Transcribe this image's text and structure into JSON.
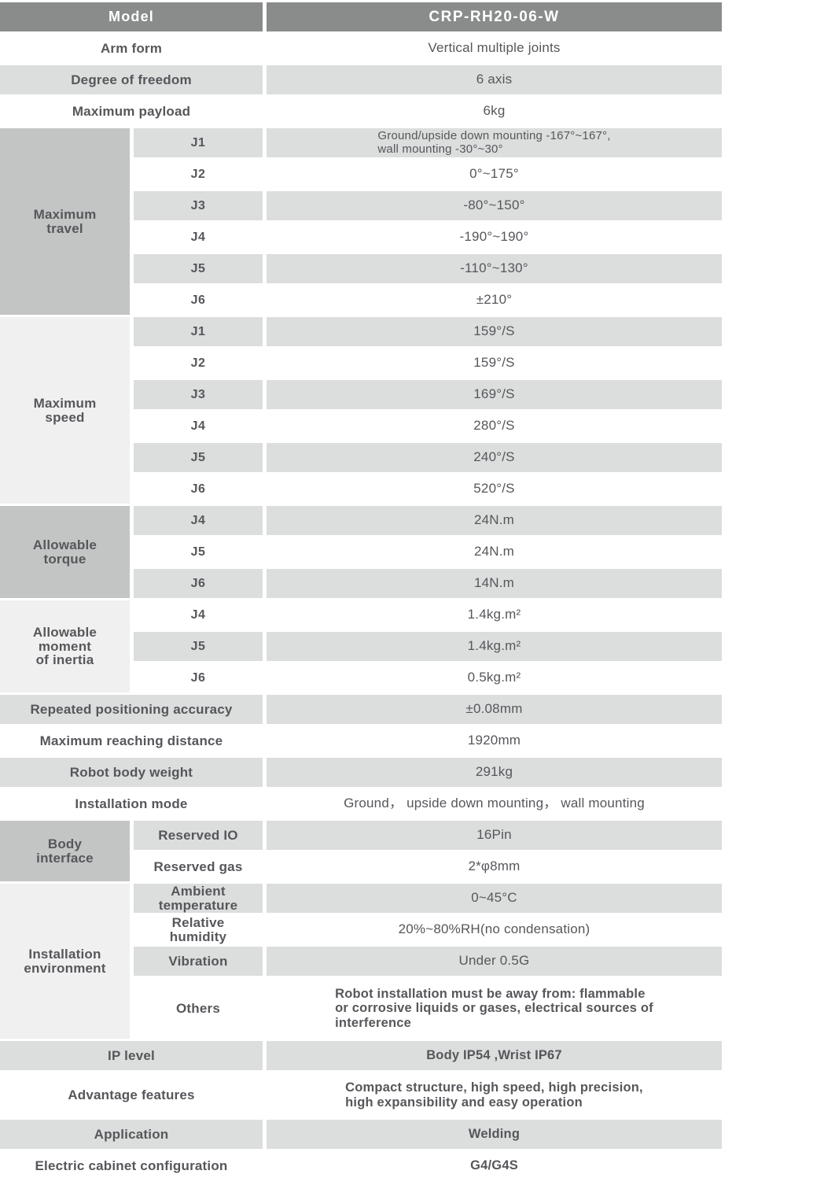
{
  "colors": {
    "header_bg": "#8a8b8b",
    "header_text": "#ffffff",
    "stripe_bg": "#dcdddd",
    "group_dark_bg": "#c3c4c4",
    "group_light_bg": "#f0f0f0",
    "text": "#56575b"
  },
  "header": {
    "label": "Model",
    "value": "CRP-RH20-06-W"
  },
  "rows": {
    "arm_form": {
      "label": "Arm form",
      "value": "Vertical multiple joints"
    },
    "degree_of_freedom": {
      "label": "Degree of freedom",
      "value": "6 axis"
    },
    "maximum_payload": {
      "label": "Maximum payload",
      "value": "6kg"
    },
    "repeated_positioning_accuracy": {
      "label": "Repeated positioning accuracy",
      "value": "±0.08mm"
    },
    "maximum_reaching_distance": {
      "label": "Maximum reaching distance",
      "value": "1920mm"
    },
    "robot_body_weight": {
      "label": "Robot body weight",
      "value": "291kg"
    },
    "installation_mode": {
      "label": "Installation mode",
      "value": "Ground， upside down mounting， wall mounting"
    },
    "ip_level": {
      "label": "IP level",
      "value": "Body IP54 ,Wrist IP67"
    },
    "advantage_features": {
      "label": "Advantage features",
      "value": "Compact structure, high speed, high precision,\nhigh expansibility and easy operation"
    },
    "application": {
      "label": "Application",
      "value": "Welding"
    },
    "electric_cabinet_configuration": {
      "label": "Electric cabinet configuration",
      "value": "G4/G4S"
    }
  },
  "groups": {
    "maximum_travel": {
      "label": "Maximum\ntravel",
      "rows": [
        {
          "joint": "J1",
          "value": "Ground/upside down mounting -167°~167°,\nwall mounting -30°~30°"
        },
        {
          "joint": "J2",
          "value": "0°~175°"
        },
        {
          "joint": "J3",
          "value": "-80°~150°"
        },
        {
          "joint": "J4",
          "value": "-190°~190°"
        },
        {
          "joint": "J5",
          "value": "-110°~130°"
        },
        {
          "joint": "J6",
          "value": "±210°"
        }
      ]
    },
    "maximum_speed": {
      "label": "Maximum\nspeed",
      "rows": [
        {
          "joint": "J1",
          "value": "159°/S"
        },
        {
          "joint": "J2",
          "value": "159°/S"
        },
        {
          "joint": "J3",
          "value": "169°/S"
        },
        {
          "joint": "J4",
          "value": "280°/S"
        },
        {
          "joint": "J5",
          "value": "240°/S"
        },
        {
          "joint": "J6",
          "value": "520°/S"
        }
      ]
    },
    "allowable_torque": {
      "label": "Allowable\ntorque",
      "rows": [
        {
          "joint": "J4",
          "value": "24N.m"
        },
        {
          "joint": "J5",
          "value": "24N.m"
        },
        {
          "joint": "J6",
          "value": "14N.m"
        }
      ]
    },
    "allowable_moment_of_inertia": {
      "label": "Allowable\nmoment\nof inertia",
      "rows": [
        {
          "joint": "J4",
          "value": "1.4kg.m²"
        },
        {
          "joint": "J5",
          "value": "1.4kg.m²"
        },
        {
          "joint": "J6",
          "value": "0.5kg.m²"
        }
      ]
    }
  },
  "body_interface": {
    "label": "Body\ninterface",
    "rows": [
      {
        "label": "Reserved IO",
        "value": "16Pin"
      },
      {
        "label": "Reserved gas",
        "value": "2*φ8mm"
      }
    ]
  },
  "installation_environment": {
    "label": "Installation\nenvironment",
    "rows": [
      {
        "label": "Ambient\ntemperature",
        "value": "0~45°C"
      },
      {
        "label": "Relative\nhumidity",
        "value": "20%~80%RH(no condensation)"
      },
      {
        "label": "Vibration",
        "value": "Under 0.5G"
      },
      {
        "label": "Others",
        "value": "Robot installation must be away from: flammable\nor corrosive liquids or gases, electrical sources of\ninterference"
      }
    ]
  }
}
